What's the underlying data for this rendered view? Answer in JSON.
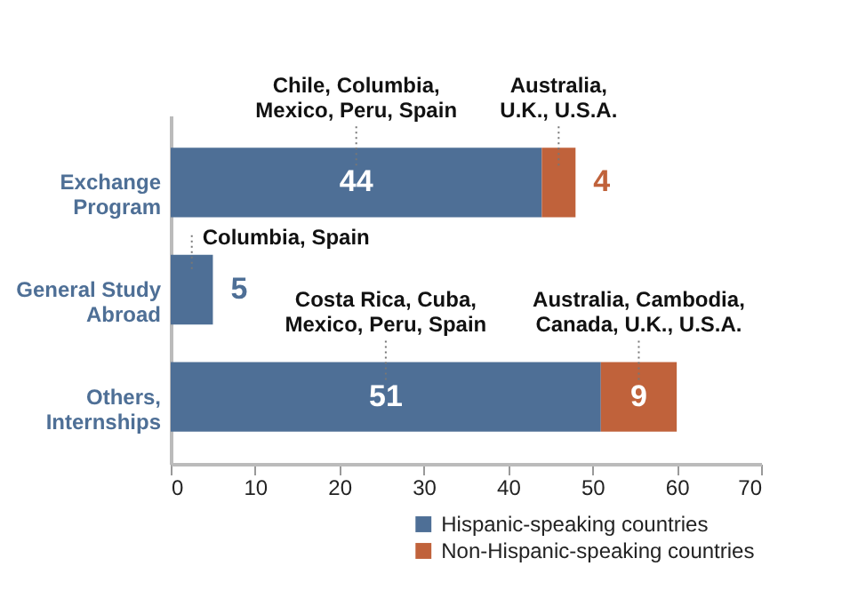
{
  "chart_data": {
    "type": "bar",
    "orientation": "horizontal",
    "stacked": true,
    "categories": [
      "Exchange Program",
      "General Study Abroad",
      "Others, Internships"
    ],
    "series": [
      {
        "name": "Hispanic-speaking countries",
        "color": "#4e6f96",
        "values": [
          44,
          5,
          51
        ]
      },
      {
        "name": "Non-Hispanic-speaking countries",
        "color": "#c0623b",
        "values": [
          4,
          null,
          9
        ]
      }
    ],
    "xlim": [
      0,
      70
    ],
    "xticks": [
      0,
      10,
      20,
      30,
      40,
      50,
      60,
      70
    ],
    "data_labels": true,
    "legend": "bottom right",
    "grid": false,
    "annotations": [
      "Chile, Columbia, Mexico, Peru, Spain",
      "Australia, U.K., U.S.A.",
      "Columbia, Spain",
      "Costa Rica, Cuba, Mexico, Peru, Spain",
      "Australia, Cambodia, Canada, U.K., U.S.A."
    ]
  }
}
